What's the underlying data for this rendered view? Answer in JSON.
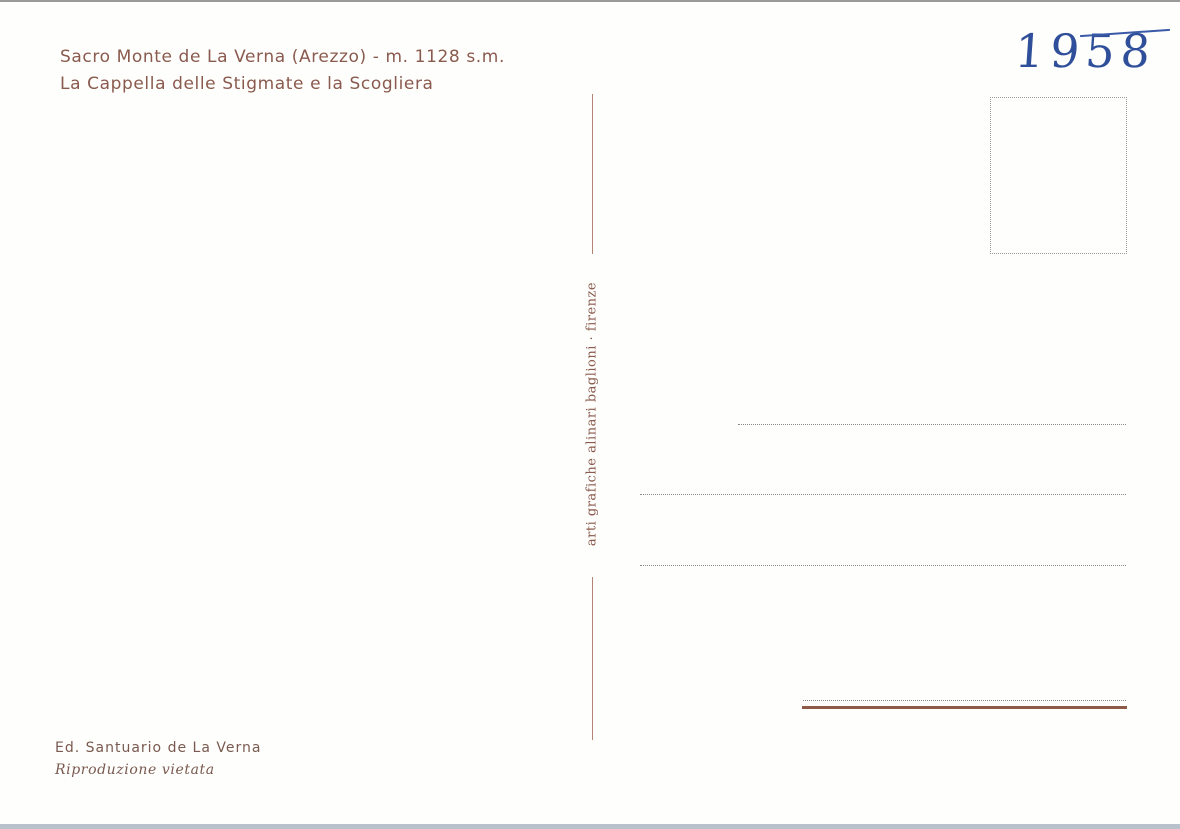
{
  "postcard": {
    "title_line_1": "Sacro Monte de La Verna (Arezzo) - m. 1128 s.m.",
    "title_line_2": "La Cappella delle Stigmate e la Scogliera",
    "handwritten_year": "1958",
    "printer_credit": "arti grafiche alinari baglioni · firenze",
    "publisher": "Ed. Santuario de La Verna",
    "notice": "Riproduzione vietata",
    "colors": {
      "print_ink": "#8a5a4e",
      "handwriting_ink": "#2f4f9a",
      "address_rule": "#8e5a48"
    }
  }
}
